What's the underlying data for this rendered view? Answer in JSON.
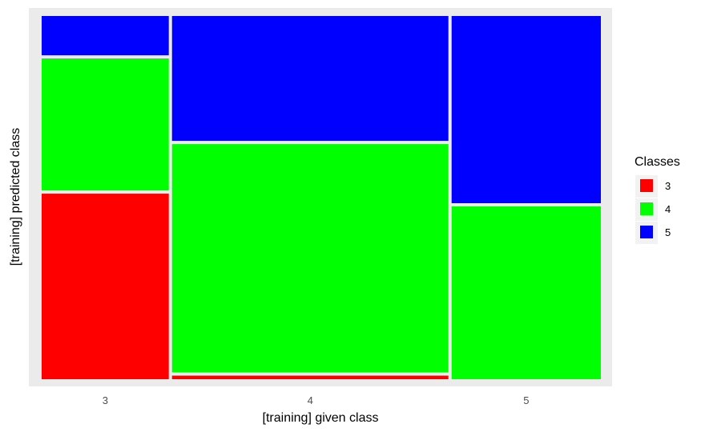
{
  "chart_data": {
    "type": "mosaic",
    "xlabel": "[training] given class",
    "ylabel": "[training] predicted class",
    "categories": [
      "3",
      "4",
      "5"
    ],
    "column_proportions": [
      0.23,
      0.5,
      0.27
    ],
    "stack_order": [
      "3",
      "4",
      "5"
    ],
    "cells": [
      {
        "given": "3",
        "predicted": "3",
        "share": 0.52
      },
      {
        "given": "3",
        "predicted": "4",
        "share": 0.37
      },
      {
        "given": "3",
        "predicted": "5",
        "share": 0.11
      },
      {
        "given": "4",
        "predicted": "3",
        "share": 0.01
      },
      {
        "given": "4",
        "predicted": "4",
        "share": 0.64
      },
      {
        "given": "4",
        "predicted": "5",
        "share": 0.35
      },
      {
        "given": "5",
        "predicted": "3",
        "share": 0.0
      },
      {
        "given": "5",
        "predicted": "4",
        "share": 0.48
      },
      {
        "given": "5",
        "predicted": "5",
        "share": 0.52
      }
    ],
    "legend": {
      "title": "Classes",
      "placement": "right",
      "items": [
        {
          "label": "3",
          "color": "#FF0000"
        },
        {
          "label": "4",
          "color": "#00FF00"
        },
        {
          "label": "5",
          "color": "#0000FF"
        }
      ]
    },
    "panel_background": "#EBEBEB"
  }
}
